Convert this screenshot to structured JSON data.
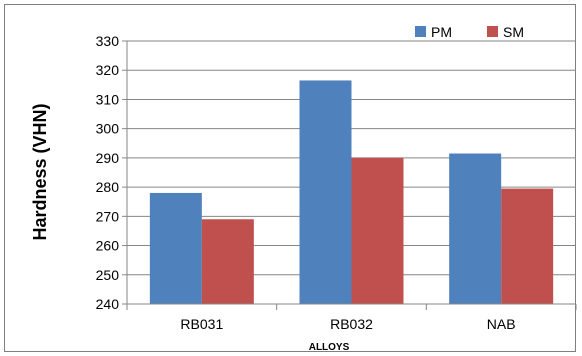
{
  "chart_data": {
    "type": "bar",
    "categories": [
      "RB031",
      "RB032",
      "NAB"
    ],
    "series": [
      {
        "name": "PM",
        "values": [
          278,
          316.5,
          291.5
        ],
        "color": "#4f81bd"
      },
      {
        "name": "SM",
        "values": [
          269,
          290,
          279.5
        ],
        "color": "#c0504d"
      }
    ],
    "ylabel": "Hardness (VHN)",
    "xlabel": "ALLOYS",
    "ylim": [
      240,
      330
    ],
    "yticks": [
      240,
      250,
      260,
      270,
      280,
      290,
      300,
      310,
      320,
      330
    ],
    "grid": true,
    "legend_position": "top-right"
  }
}
